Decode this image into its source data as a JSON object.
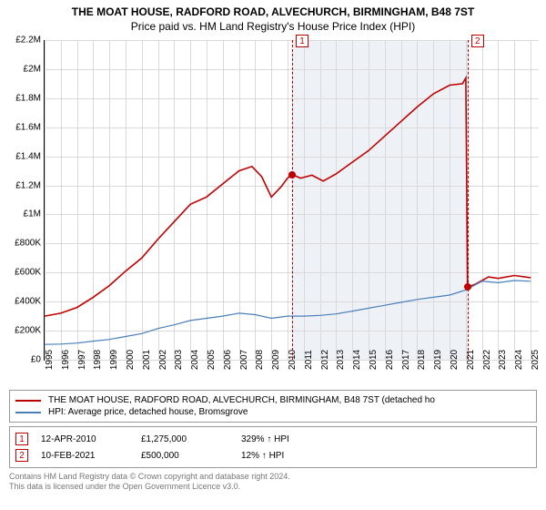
{
  "title": {
    "line1": "THE MOAT HOUSE, RADFORD ROAD, ALVECHURCH, BIRMINGHAM, B48 7ST",
    "line2": "Price paid vs. HM Land Registry's House Price Index (HPI)"
  },
  "chart": {
    "type": "line",
    "background_color": "#ffffff",
    "shaded_band": {
      "start_year": 2010.28,
      "end_year": 2021.11,
      "color": "#eef2f7"
    },
    "grid_color": "#d9d9d9",
    "axis_color": "#000000",
    "x": {
      "min": 1995,
      "max": 2025.5,
      "ticks": [
        1995,
        1996,
        1997,
        1998,
        1999,
        2000,
        2001,
        2002,
        2003,
        2004,
        2005,
        2006,
        2007,
        2008,
        2009,
        2010,
        2011,
        2012,
        2013,
        2014,
        2015,
        2016,
        2017,
        2018,
        2019,
        2020,
        2021,
        2022,
        2023,
        2024,
        2025
      ],
      "label_fontsize": 10
    },
    "y": {
      "min": 0,
      "max": 2200000,
      "ticks": [
        0,
        200000,
        400000,
        600000,
        800000,
        1000000,
        1200000,
        1400000,
        1600000,
        1800000,
        2000000,
        2200000
      ],
      "tick_labels": [
        "£0",
        "£200K",
        "£400K",
        "£600K",
        "£800K",
        "£1M",
        "£1.2M",
        "£1.4M",
        "£1.6M",
        "£1.8M",
        "£2M",
        "£2.2M"
      ],
      "label_fontsize": 10
    },
    "series": [
      {
        "name": "subject",
        "label": "THE MOAT HOUSE, RADFORD ROAD, ALVECHURCH, BIRMINGHAM, B48 7ST (detached ho",
        "color": "#c00000",
        "line_width": 1.6,
        "data": [
          [
            1995.0,
            300000
          ],
          [
            1996.0,
            320000
          ],
          [
            1997.0,
            360000
          ],
          [
            1998.0,
            430000
          ],
          [
            1999.0,
            510000
          ],
          [
            2000.0,
            610000
          ],
          [
            2001.0,
            700000
          ],
          [
            2002.0,
            830000
          ],
          [
            2003.0,
            950000
          ],
          [
            2004.0,
            1070000
          ],
          [
            2005.0,
            1120000
          ],
          [
            2006.0,
            1210000
          ],
          [
            2007.0,
            1300000
          ],
          [
            2007.8,
            1330000
          ],
          [
            2008.4,
            1260000
          ],
          [
            2009.0,
            1120000
          ],
          [
            2009.6,
            1190000
          ],
          [
            2010.0,
            1250000
          ],
          [
            2010.28,
            1275000
          ],
          [
            2010.8,
            1250000
          ],
          [
            2011.5,
            1270000
          ],
          [
            2012.2,
            1230000
          ],
          [
            2013.0,
            1280000
          ],
          [
            2014.0,
            1360000
          ],
          [
            2015.0,
            1440000
          ],
          [
            2016.0,
            1540000
          ],
          [
            2017.0,
            1640000
          ],
          [
            2018.0,
            1740000
          ],
          [
            2019.0,
            1830000
          ],
          [
            2020.0,
            1890000
          ],
          [
            2020.8,
            1900000
          ],
          [
            2021.0,
            1940000
          ],
          [
            2021.11,
            500000
          ],
          [
            2021.6,
            520000
          ],
          [
            2022.4,
            570000
          ],
          [
            2023.0,
            560000
          ],
          [
            2024.0,
            580000
          ],
          [
            2025.0,
            565000
          ]
        ]
      },
      {
        "name": "hpi",
        "label": "HPI: Average price, detached house, Bromsgrove",
        "color": "#4a7ebb",
        "line_width": 1.2,
        "data": [
          [
            1995.0,
            105000
          ],
          [
            1996.0,
            108000
          ],
          [
            1997.0,
            115000
          ],
          [
            1998.0,
            128000
          ],
          [
            1999.0,
            140000
          ],
          [
            2000.0,
            160000
          ],
          [
            2001.0,
            180000
          ],
          [
            2002.0,
            215000
          ],
          [
            2003.0,
            240000
          ],
          [
            2004.0,
            270000
          ],
          [
            2005.0,
            285000
          ],
          [
            2006.0,
            300000
          ],
          [
            2007.0,
            320000
          ],
          [
            2008.0,
            310000
          ],
          [
            2009.0,
            285000
          ],
          [
            2010.0,
            300000
          ],
          [
            2011.0,
            300000
          ],
          [
            2012.0,
            305000
          ],
          [
            2013.0,
            315000
          ],
          [
            2014.0,
            335000
          ],
          [
            2015.0,
            355000
          ],
          [
            2016.0,
            375000
          ],
          [
            2017.0,
            395000
          ],
          [
            2018.0,
            415000
          ],
          [
            2019.0,
            430000
          ],
          [
            2020.0,
            445000
          ],
          [
            2021.0,
            480000
          ],
          [
            2022.0,
            540000
          ],
          [
            2023.0,
            530000
          ],
          [
            2024.0,
            545000
          ],
          [
            2025.0,
            540000
          ]
        ]
      }
    ],
    "sale_markers": [
      {
        "n": 1,
        "year": 2010.28,
        "price": 1275000,
        "dot_color": "#c00000",
        "box_y_offset": -6
      },
      {
        "n": 2,
        "year": 2021.11,
        "price": 500000,
        "dot_color": "#c00000",
        "box_y_offset": -6
      }
    ],
    "dashed_line_color": "#c00000"
  },
  "legend": {
    "items": [
      {
        "color": "#c00000",
        "label": "THE MOAT HOUSE, RADFORD ROAD, ALVECHURCH, BIRMINGHAM, B48 7ST (detached ho"
      },
      {
        "color": "#4a7ebb",
        "label": "HPI: Average price, detached house, Bromsgrove"
      }
    ]
  },
  "sales_table": {
    "rows": [
      {
        "n": "1",
        "date": "12-APR-2010",
        "price": "£1,275,000",
        "delta": "329% ↑ HPI"
      },
      {
        "n": "2",
        "date": "10-FEB-2021",
        "price": "£500,000",
        "delta": "12% ↑ HPI"
      }
    ]
  },
  "attribution": {
    "line1": "Contains HM Land Registry data © Crown copyright and database right 2024.",
    "line2": "This data is licensed under the Open Government Licence v3.0."
  }
}
